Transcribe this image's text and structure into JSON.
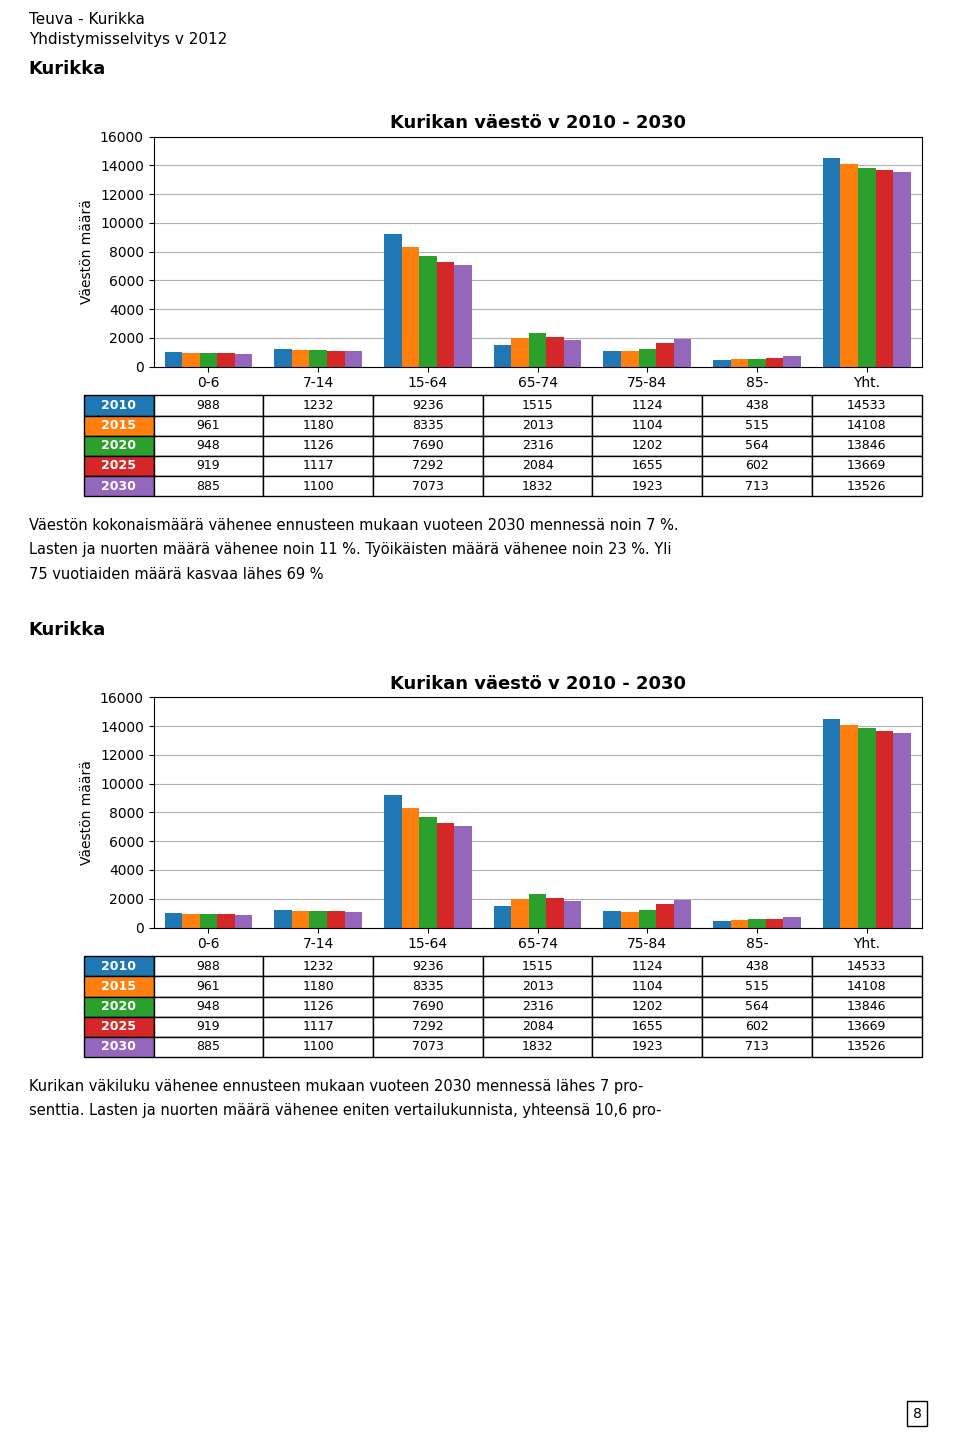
{
  "title": "Teuva - Kurikka",
  "subtitle": "Yhdistymisselvitys v 2012",
  "annotations": [
    "8"
  ],
  "chart_data": [
    {
      "type": "bar",
      "subtitle": "Kurikka",
      "title": "Kurikan väestö v 2010 - 2030",
      "y_label": "Väestön määrä",
      "categories": [
        "0-6",
        "7-14",
        "15-64",
        "65-74",
        "75-84",
        "85-",
        "Yht."
      ],
      "series": [
        {
          "name": "2010",
          "values": [
            988,
            1232,
            9236,
            1515,
            1124,
            438,
            14533
          ]
        },
        {
          "name": "2015",
          "values": [
            961,
            1180,
            8335,
            2013,
            1104,
            515,
            14108
          ]
        },
        {
          "name": "2020",
          "values": [
            948,
            1126,
            7690,
            2316,
            1202,
            564,
            13846
          ]
        },
        {
          "name": "2025",
          "values": [
            919,
            1117,
            7292,
            2084,
            1655,
            602,
            13669
          ]
        },
        {
          "name": "2030",
          "values": [
            885,
            1100,
            7073,
            1832,
            1923,
            713,
            13526
          ]
        }
      ],
      "ylim": [
        0,
        16000
      ],
      "yticks": [
        0,
        2000,
        4000,
        6000,
        8000,
        10000,
        12000,
        14000,
        16000
      ],
      "grid": true,
      "annotations": [
        "Väestön kokonaismäärä vähenee ennusteen mukaan vuoteen 2030 mennessä noin 7 %.",
        "Lasten ja nuorten määrä vähenee noin 11 %. Työikäisten määrä vähenee noin 23 %. Yli",
        "75 vuotiaiden määrä kasvaa lähes 69 %"
      ]
    },
    {
      "type": "bar",
      "subtitle": "Kurikka",
      "title": "Kurikan väestö v 2010 - 2030",
      "y_label": "Väestön määrä",
      "categories": [
        "0-6",
        "7-14",
        "15-64",
        "65-74",
        "75-84",
        "85-",
        "Yht."
      ],
      "series": [
        {
          "name": "2010",
          "values": [
            988,
            1232,
            9236,
            1515,
            1124,
            438,
            14533
          ]
        },
        {
          "name": "2015",
          "values": [
            961,
            1180,
            8335,
            2013,
            1104,
            515,
            14108
          ]
        },
        {
          "name": "2020",
          "values": [
            948,
            1126,
            7690,
            2316,
            1202,
            564,
            13846
          ]
        },
        {
          "name": "2025",
          "values": [
            919,
            1117,
            7292,
            2084,
            1655,
            602,
            13669
          ]
        },
        {
          "name": "2030",
          "values": [
            885,
            1100,
            7073,
            1832,
            1923,
            713,
            13526
          ]
        }
      ],
      "ylim": [
        0,
        16000
      ],
      "yticks": [
        0,
        2000,
        4000,
        6000,
        8000,
        10000,
        12000,
        14000,
        16000
      ],
      "grid": true,
      "annotations": [
        "Kurikan väkiluku vähenee ennusteen mukaan vuoteen 2030 mennessä lähes 7 pro-",
        "senttia. Lasten ja nuorten määrä vähenee eniten vertailukunnista, yhteensä 10,6 pro-"
      ]
    }
  ]
}
